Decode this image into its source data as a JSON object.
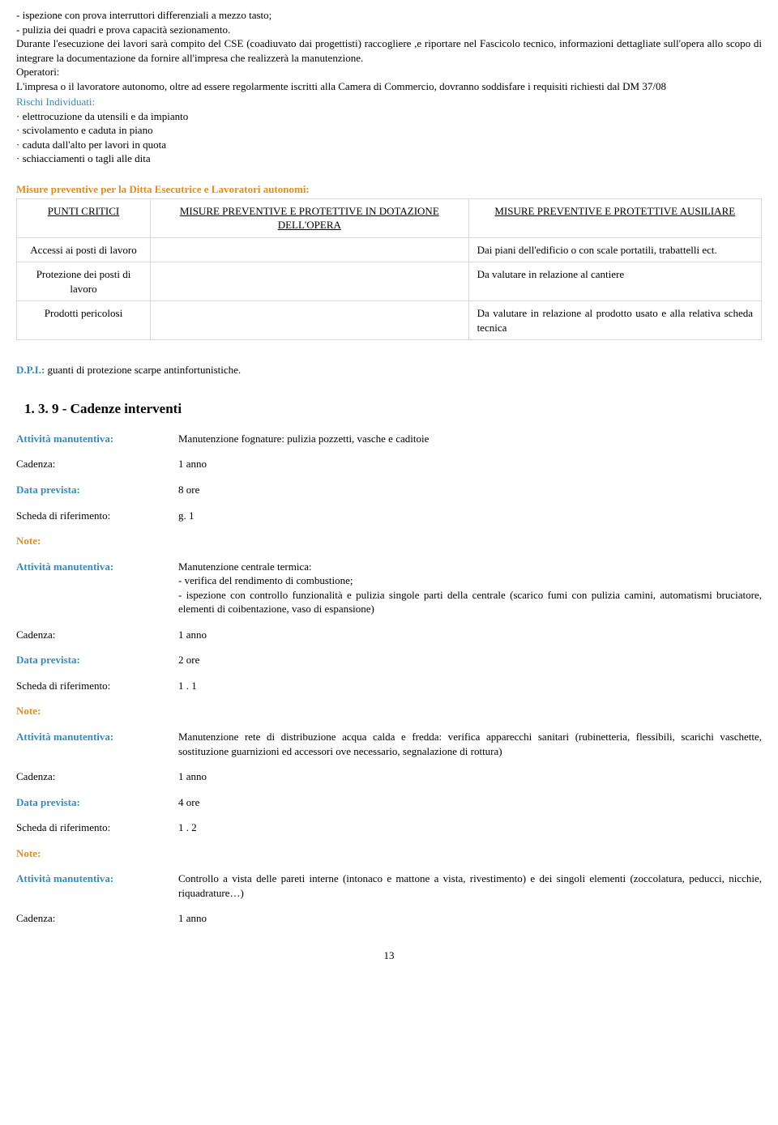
{
  "intro_lines": [
    "- ispezione con prova interruttori differenziali a mezzo tasto;",
    "- pulizia dei quadri e prova capacità sezionamento.",
    "Durante l'esecuzione dei lavori sarà compito del CSE (coadiuvato dai progettisti) raccogliere ,e riportare nel Fascicolo tecnico, informazioni dettagliate sull'opera allo scopo di integrare la documentazione da fornire all'impresa che realizzerà la manutenzione.",
    "Operatori:",
    "L'impresa o il lavoratore autonomo, oltre ad essere regolarmente iscritti alla Camera di Commercio, dovranno soddisfare i requisiti richiesti dal DM 37/08"
  ],
  "rischi_title": "Rischi Individuati:",
  "rischi_items": [
    "· elettrocuzione da utensili e da impianto",
    "· scivolamento e caduta in piano",
    "· caduta dall'alto per lavori in quota",
    "· schiacciamenti o tagli alle dita"
  ],
  "misure_title": "Misure preventive per la Ditta Esecutrice e Lavoratori autonomi:",
  "table": {
    "headers": [
      "PUNTI CRITICI",
      "MISURE PREVENTIVE E PROTETTIVE IN DOTAZIONE DELL'OPERA",
      "MISURE PREVENTIVE E PROTETTIVE AUSILIARE"
    ],
    "rows": [
      [
        "Accessi ai posti di lavoro",
        "",
        "Dai piani dell'edificio o con scale portatili, trabattelli ect."
      ],
      [
        "Protezione dei posti di lavoro",
        "",
        "Da valutare in relazione al cantiere"
      ],
      [
        "Prodotti pericolosi",
        "",
        "Da valutare in relazione al prodotto usato e alla relativa scheda tecnica"
      ]
    ]
  },
  "dpi_label": "D.P.I.:",
  "dpi_text": " guanti di protezione scarpe antinfortunistiche.",
  "section_heading": "1.  3.  9 - Cadenze interventi",
  "field_labels": {
    "att": "Attività manutentiva:",
    "cad": "Cadenza:",
    "data": "Data prevista:",
    "scheda": "Scheda di riferimento:",
    "note": "Note:"
  },
  "activities": [
    {
      "att": "Manutenzione fognature: pulizia pozzetti, vasche e caditoie",
      "cad": "1 anno",
      "data": "8 ore",
      "scheda": "g.  1"
    },
    {
      "att": "Manutenzione centrale termica:\n- verifica del rendimento di combustione;\n- ispezione con controllo funzionalità e pulizia singole parti della centrale (scarico fumi con pulizia camini, automatismi bruciatore, elementi di coibentazione, vaso di espansione)",
      "cad": "1 anno",
      "data": "2 ore",
      "scheda": "1 .  1"
    },
    {
      "att": "Manutenzione rete di distribuzione acqua calda e fredda: verifica apparecchi sanitari (rubinetteria, flessibili, scarichi vaschette, sostituzione guarnizioni ed accessori ove necessario, segnalazione di rottura)",
      "cad": "1 anno",
      "data": "4 ore",
      "scheda": "1 .  2"
    },
    {
      "att": "Controllo a vista delle pareti interne (intonaco e mattone a vista, rivestimento) e dei singoli elementi (zoccolatura, peducci, nicchie, riquadrature…)",
      "cad": "1 anno"
    }
  ],
  "page_number": "13"
}
